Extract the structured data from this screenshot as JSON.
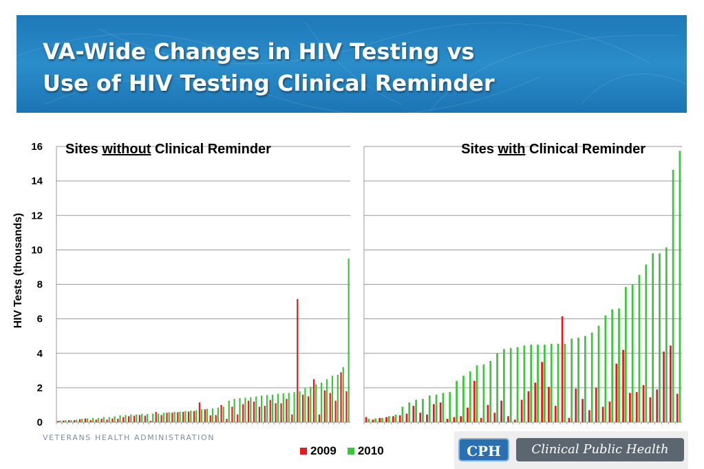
{
  "title": {
    "line1": "VA-Wide Changes in HIV Testing vs",
    "line2": "Use of HIV Testing Clinical Reminder"
  },
  "colors": {
    "banner": "#2a8dc9",
    "series_2009": "#e8191b",
    "series_2010": "#3cc63c",
    "grid": "#9a9a9a"
  },
  "chart_data": [
    {
      "type": "bar",
      "title_parts": [
        "Sites ",
        "without",
        " Clinical Reminder"
      ],
      "ylabel": "HIV Tests (thousands)",
      "yticks": [
        "0",
        "2",
        "4",
        "6",
        "8",
        "10",
        "12",
        "14",
        "16"
      ],
      "ylim": [
        0,
        16
      ],
      "grid": true,
      "series": [
        {
          "name": "2009",
          "values": [
            0.08,
            0.1,
            0.12,
            0.12,
            0.18,
            0.22,
            0.12,
            0.15,
            0.2,
            0.15,
            0.22,
            0.2,
            0.3,
            0.35,
            0.38,
            0.42,
            0.38,
            0.08,
            0.6,
            0.42,
            0.55,
            0.55,
            0.58,
            0.6,
            0.62,
            0.65,
            1.15,
            0.75,
            0.4,
            0.42,
            1.0,
            0.2,
            0.9,
            0.45,
            1.05,
            1.25,
            1.2,
            0.9,
            0.95,
            1.3,
            1.1,
            1.1,
            1.35,
            0.45,
            7.15,
            1.6,
            1.5,
            2.5,
            0.45,
            1.85,
            1.7,
            1.25,
            2.9,
            1.8
          ]
        },
        {
          "name": "2010",
          "values": [
            0.1,
            0.12,
            0.12,
            0.15,
            0.2,
            0.22,
            0.25,
            0.25,
            0.3,
            0.3,
            0.35,
            0.4,
            0.42,
            0.45,
            0.45,
            0.48,
            0.48,
            0.5,
            0.5,
            0.55,
            0.58,
            0.6,
            0.62,
            0.65,
            0.68,
            0.7,
            0.75,
            0.78,
            0.8,
            0.85,
            0.9,
            1.25,
            1.35,
            1.4,
            1.42,
            1.45,
            1.5,
            1.55,
            1.58,
            1.6,
            1.65,
            1.68,
            1.7,
            1.75,
            1.8,
            1.98,
            2.05,
            2.2,
            2.3,
            2.5,
            2.7,
            2.75,
            3.2,
            9.5
          ]
        }
      ]
    },
    {
      "type": "bar",
      "title_parts": [
        "Sites ",
        "with",
        " Clinical Reminder"
      ],
      "ylim": [
        0,
        16
      ],
      "grid": true,
      "series": [
        {
          "name": "2009",
          "values": [
            0.3,
            0.15,
            0.25,
            0.3,
            0.35,
            0.4,
            0.5,
            0.95,
            0.55,
            0.45,
            1.05,
            1.15,
            0.2,
            0.3,
            0.35,
            0.85,
            2.4,
            0.25,
            1.0,
            0.55,
            1.25,
            0.35,
            0.15,
            1.3,
            1.8,
            2.3,
            3.5,
            2.05,
            0.95,
            6.15,
            0.25,
            1.95,
            1.35,
            0.7,
            2.0,
            0.9,
            1.2,
            3.4,
            4.2,
            1.7,
            1.75,
            2.15,
            1.45,
            1.9,
            4.1,
            4.45,
            1.65
          ]
        },
        {
          "name": "2010",
          "values": [
            0.2,
            0.22,
            0.25,
            0.35,
            0.45,
            0.9,
            1.15,
            1.3,
            1.35,
            1.55,
            1.6,
            1.7,
            1.75,
            2.4,
            2.7,
            2.95,
            3.3,
            3.35,
            3.55,
            4.0,
            4.25,
            4.3,
            4.35,
            4.45,
            4.5,
            4.5,
            4.5,
            4.55,
            4.55,
            4.55,
            4.85,
            4.9,
            5.0,
            5.2,
            5.6,
            6.2,
            6.55,
            6.6,
            7.85,
            8.0,
            8.55,
            9.15,
            9.8,
            9.8,
            10.15,
            14.65,
            15.75
          ]
        }
      ]
    }
  ],
  "legend": {
    "items": [
      "2009",
      "2010"
    ]
  },
  "footer": {
    "org": "VETERANS HEALTH ADMINISTRATION"
  },
  "logo": {
    "abbr": "CPH",
    "name": "Clinical Public Health"
  }
}
